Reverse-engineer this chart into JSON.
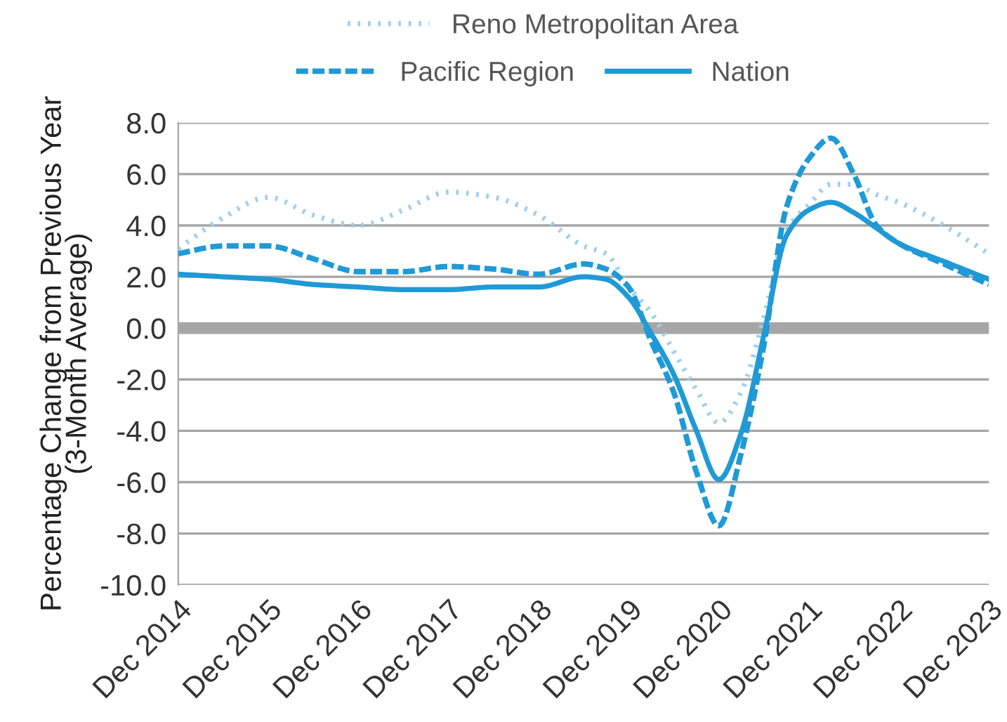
{
  "chart_data": {
    "type": "line",
    "ylabel": "Percentage Change from Previous Year\n(3-Month Average)",
    "x": [
      "2014-12",
      "2015-06",
      "2015-12",
      "2016-06",
      "2016-12",
      "2017-06",
      "2017-12",
      "2018-06",
      "2018-12",
      "2019-06",
      "2019-09",
      "2019-12",
      "2020-03",
      "2020-06",
      "2020-09",
      "2020-12",
      "2021-03",
      "2021-06",
      "2021-09",
      "2021-12",
      "2022-03",
      "2022-06",
      "2022-09",
      "2022-12",
      "2023-06",
      "2023-12"
    ],
    "series": [
      {
        "name": "Reno Metropolitan Area",
        "color": "#9dcfef",
        "line_style": "dotted",
        "values": [
          3.1,
          4.3,
          5.1,
          4.4,
          4.0,
          4.6,
          5.3,
          5.1,
          4.4,
          3.2,
          2.9,
          1.6,
          0.6,
          -0.9,
          -2.4,
          -3.7,
          -2.5,
          0.4,
          3.8,
          4.8,
          5.6,
          5.6,
          5.2,
          4.9,
          4.0,
          2.9
        ]
      },
      {
        "name": "Pacific Region",
        "color": "#1f9ad6",
        "line_style": "dashed",
        "values": [
          2.9,
          3.2,
          3.2,
          2.7,
          2.2,
          2.2,
          2.4,
          2.3,
          2.1,
          2.5,
          2.3,
          1.6,
          -0.5,
          -2.5,
          -5.6,
          -7.7,
          -4.9,
          -0.7,
          4.7,
          6.6,
          7.4,
          6.0,
          4.0,
          3.3,
          2.5,
          1.7
        ]
      },
      {
        "name": "Nation",
        "color": "#1f9ad6",
        "line_style": "solid",
        "values": [
          2.1,
          2.0,
          1.9,
          1.7,
          1.6,
          1.5,
          1.5,
          1.6,
          1.6,
          2.0,
          1.9,
          1.2,
          -0.2,
          -1.8,
          -4.0,
          -5.9,
          -4.1,
          -0.3,
          3.6,
          4.6,
          4.9,
          4.5,
          3.9,
          3.3,
          2.6,
          1.9
        ]
      }
    ],
    "ylim": [
      -10,
      8
    ],
    "yticks": [
      {
        "value": -10,
        "label": "-10.0"
      },
      {
        "value": -8,
        "label": "-8.0"
      },
      {
        "value": -6,
        "label": "-6.0"
      },
      {
        "value": -4,
        "label": "-4.0"
      },
      {
        "value": -2,
        "label": "-2.0"
      },
      {
        "value": 0,
        "label": "0.0"
      },
      {
        "value": 2,
        "label": "2.0"
      },
      {
        "value": 4,
        "label": "4.0"
      },
      {
        "value": 6,
        "label": "6.0"
      },
      {
        "value": 8,
        "label": "8.0"
      }
    ],
    "xlim": [
      "2014-12",
      "2023-12"
    ],
    "xticks": [
      {
        "value": "2014-12",
        "label": "Dec 2014"
      },
      {
        "value": "2015-12",
        "label": "Dec 2015"
      },
      {
        "value": "2016-12",
        "label": "Dec 2016"
      },
      {
        "value": "2017-12",
        "label": "Dec 2017"
      },
      {
        "value": "2018-12",
        "label": "Dec 2018"
      },
      {
        "value": "2019-12",
        "label": "Dec 2019"
      },
      {
        "value": "2020-12",
        "label": "Dec 2020"
      },
      {
        "value": "2021-12",
        "label": "Dec 2021"
      },
      {
        "value": "2022-12",
        "label": "Dec 2022"
      },
      {
        "value": "2023-12",
        "label": "Dec 2023"
      }
    ],
    "ref_lines": [
      {
        "axis": "y",
        "value": 0,
        "label": null,
        "color": "#a6a6a6"
      }
    ],
    "grid": "y",
    "legend": "top",
    "marker": "none"
  }
}
